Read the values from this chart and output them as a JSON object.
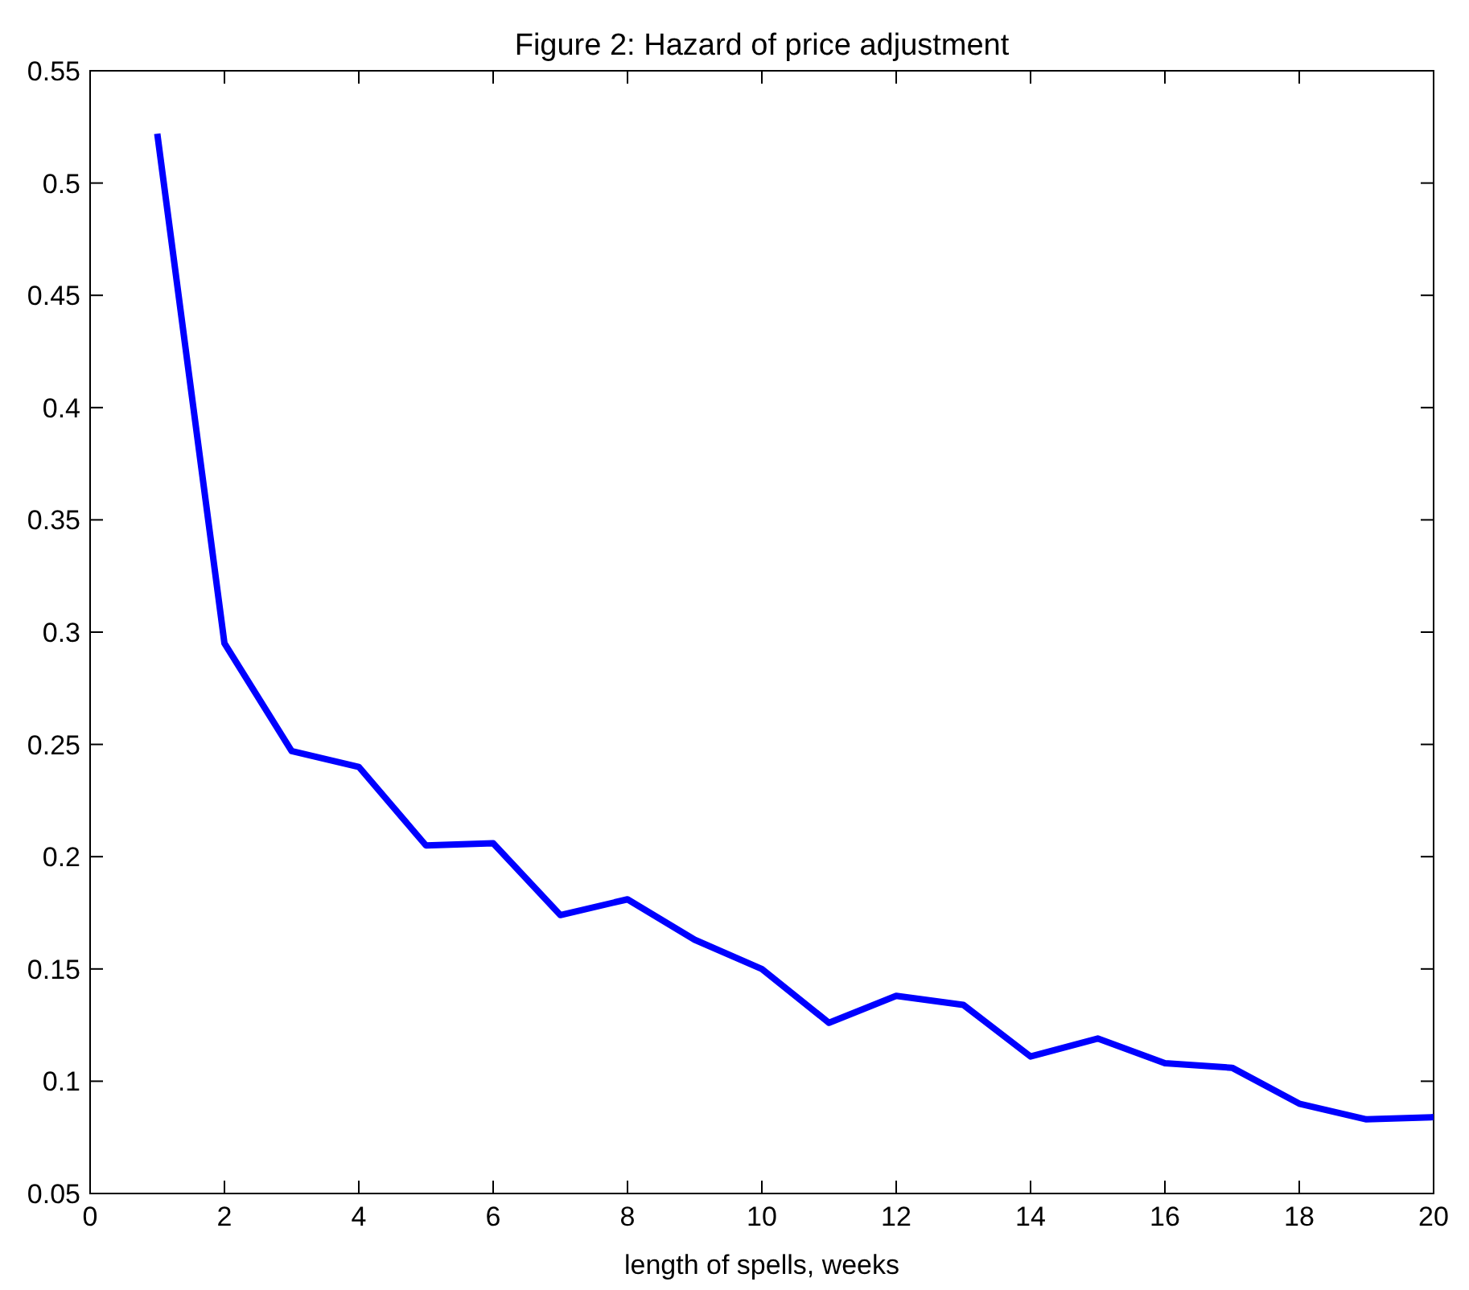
{
  "chart_data": {
    "type": "line",
    "title": "Figure 2: Hazard of price adjustment",
    "xlabel": "length of spells, weeks",
    "x": [
      1,
      2,
      3,
      4,
      5,
      6,
      7,
      8,
      9,
      10,
      11,
      12,
      13,
      14,
      15,
      16,
      17,
      18,
      19,
      20
    ],
    "series": [
      {
        "color": "#0000ff",
        "values": [
          0.522,
          0.295,
          0.247,
          0.24,
          0.205,
          0.206,
          0.174,
          0.181,
          0.163,
          0.15,
          0.126,
          0.138,
          0.134,
          0.111,
          0.119,
          0.108,
          0.106,
          0.09,
          0.083,
          0.084
        ]
      }
    ],
    "xlim": [
      0,
      20
    ],
    "xticks": [
      0,
      2,
      4,
      6,
      8,
      10,
      12,
      14,
      16,
      18,
      20
    ],
    "ylim": [
      0.05,
      0.55
    ],
    "yticks": [
      0.05,
      0.1,
      0.15,
      0.2,
      0.25,
      0.3,
      0.35,
      0.4,
      0.45,
      0.5,
      0.55
    ],
    "grid": false,
    "marker": "none",
    "line_style": "solid"
  }
}
